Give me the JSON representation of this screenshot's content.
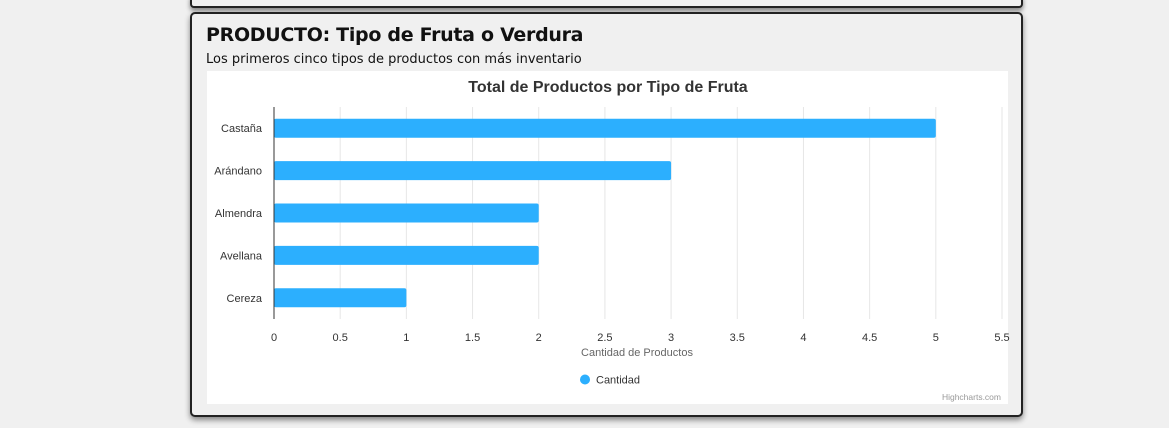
{
  "card": {
    "title": "PRODUCTO: Tipo de Fruta o Verdura",
    "subtitle": "Los primeros cinco tipos de productos con más inventario"
  },
  "chart_data": {
    "type": "bar",
    "orientation": "horizontal",
    "title": "Total de Productos por Tipo de Fruta",
    "categories": [
      "Castaña",
      "Arándano",
      "Almendra",
      "Avellana",
      "Cereza"
    ],
    "series": [
      {
        "name": "Cantidad",
        "values": [
          5,
          3,
          2,
          2,
          1
        ],
        "color": "#2caffe"
      }
    ],
    "xlabel": "Cantidad de Productos",
    "ylabel": "",
    "xlim": [
      0,
      5.5
    ],
    "xticks": [
      "0",
      "0.5",
      "1",
      "1.5",
      "2",
      "2.5",
      "3",
      "3.5",
      "4",
      "4.5",
      "5",
      "5.5"
    ],
    "grid": true,
    "legend": "bottom-center",
    "credits": "Highcharts.com"
  }
}
